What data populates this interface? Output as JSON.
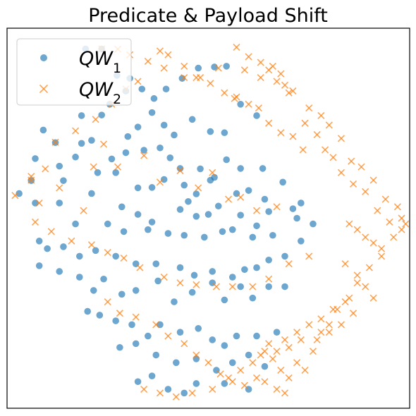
{
  "chart_data": {
    "type": "scatter",
    "title": "Predicate & Payload Shift",
    "xlabel": "",
    "ylabel": "",
    "xlim": [
      -1.0,
      1.0
    ],
    "ylim": [
      -1.0,
      1.0
    ],
    "grid": false,
    "legend": {
      "placement": "top-left",
      "entries": [
        "QW_1",
        "QW_2"
      ]
    },
    "series": [
      {
        "name": "QW_1",
        "label_main": "QW",
        "label_sub": "1",
        "marker": "circle",
        "color": "#1f77b4",
        "points": [
          [
            -0.61,
            0.891
          ],
          [
            -0.53,
            0.891
          ],
          [
            -0.454,
            0.752
          ],
          [
            -0.41,
            0.669
          ],
          [
            -0.39,
            0.736
          ],
          [
            -0.33,
            0.68
          ],
          [
            -0.27,
            0.63
          ],
          [
            -0.21,
            0.68
          ],
          [
            -0.13,
            0.736
          ],
          [
            -0.05,
            0.79
          ],
          [
            0.03,
            0.796
          ],
          [
            0.09,
            0.8
          ],
          [
            -0.63,
            0.54
          ],
          [
            -0.53,
            0.543
          ],
          [
            -0.49,
            0.6
          ],
          [
            -0.4,
            0.43
          ],
          [
            -0.35,
            0.48
          ],
          [
            -0.28,
            0.556
          ],
          [
            -0.22,
            0.49
          ],
          [
            -0.17,
            0.438
          ],
          [
            -0.08,
            0.52
          ],
          [
            0.01,
            0.456
          ],
          [
            0.08,
            0.45
          ],
          [
            0.16,
            0.6
          ],
          [
            0.24,
            0.54
          ],
          [
            -0.82,
            0.464
          ],
          [
            -0.76,
            0.398
          ],
          [
            -0.63,
            0.394
          ],
          [
            -0.58,
            0.41
          ],
          [
            -0.48,
            0.312
          ],
          [
            -0.41,
            0.345
          ],
          [
            -0.32,
            0.358
          ],
          [
            -0.24,
            0.37
          ],
          [
            -0.19,
            0.318
          ],
          [
            -0.14,
            0.262
          ],
          [
            -0.04,
            0.26
          ],
          [
            0.03,
            0.215
          ],
          [
            0.09,
            0.308
          ],
          [
            0.16,
            0.262
          ],
          [
            0.27,
            0.262
          ],
          [
            -0.86,
            0.314
          ],
          [
            -0.74,
            0.274
          ],
          [
            -0.66,
            0.322
          ],
          [
            -0.55,
            0.24
          ],
          [
            -0.46,
            0.24
          ],
          [
            -0.35,
            0.16
          ],
          [
            -0.28,
            0.162
          ],
          [
            -0.22,
            0.204
          ],
          [
            -0.12,
            0.174
          ],
          [
            -0.06,
            0.128
          ],
          [
            0.01,
            0.2
          ],
          [
            0.14,
            0.13
          ],
          [
            0.2,
            0.146
          ],
          [
            0.28,
            0.1
          ],
          [
            0.37,
            0.19
          ],
          [
            -0.88,
            0.198
          ],
          [
            -0.72,
            0.198
          ],
          [
            -0.58,
            0.13
          ],
          [
            -0.43,
            0.06
          ],
          [
            -0.35,
            0.02
          ],
          [
            -0.28,
            -0.02
          ],
          [
            -0.14,
            0.046
          ],
          [
            -0.1,
            0.088
          ],
          [
            -0.06,
            0.01
          ],
          [
            0.0,
            0.02
          ],
          [
            0.05,
            0.064
          ],
          [
            0.16,
            0.016
          ],
          [
            0.24,
            -0.04
          ],
          [
            0.3,
            0.035
          ],
          [
            0.42,
            0.05
          ],
          [
            0.46,
            0.08
          ],
          [
            -0.94,
            0.13
          ],
          [
            -0.86,
            0.08
          ],
          [
            -0.74,
            0.08
          ],
          [
            -0.66,
            -0.03
          ],
          [
            -0.5,
            -0.03
          ],
          [
            -0.42,
            -0.07
          ],
          [
            -0.3,
            -0.06
          ],
          [
            -0.2,
            -0.08
          ],
          [
            -0.12,
            -0.09
          ],
          [
            -0.02,
            -0.1
          ],
          [
            0.07,
            -0.07
          ],
          [
            0.12,
            -0.06
          ],
          [
            0.22,
            -0.1
          ],
          [
            0.32,
            -0.09
          ],
          [
            0.44,
            0.0
          ],
          [
            0.52,
            -0.03
          ],
          [
            -0.84,
            -0.12
          ],
          [
            -0.8,
            -0.16
          ],
          [
            -0.72,
            -0.15
          ],
          [
            -0.64,
            -0.2
          ],
          [
            -0.56,
            -0.17
          ],
          [
            -0.46,
            -0.2
          ],
          [
            -0.36,
            -0.24
          ],
          [
            -0.26,
            -0.24
          ],
          [
            -0.14,
            -0.26
          ],
          [
            -0.07,
            -0.3
          ],
          [
            0.02,
            -0.28
          ],
          [
            0.12,
            -0.31
          ],
          [
            0.18,
            -0.27
          ],
          [
            0.24,
            -0.26
          ],
          [
            0.3,
            -0.22
          ],
          [
            0.38,
            -0.2
          ],
          [
            0.46,
            -0.12
          ],
          [
            -0.84,
            -0.25
          ],
          [
            -0.74,
            -0.28
          ],
          [
            -0.64,
            -0.31
          ],
          [
            -0.57,
            -0.38
          ],
          [
            -0.52,
            -0.32
          ],
          [
            -0.43,
            -0.4
          ],
          [
            -0.36,
            -0.38
          ],
          [
            -0.25,
            -0.33
          ],
          [
            -0.17,
            -0.44
          ],
          [
            -0.08,
            -0.39
          ],
          [
            0.02,
            -0.34
          ],
          [
            0.08,
            -0.43
          ],
          [
            0.16,
            -0.36
          ],
          [
            0.22,
            -0.42
          ],
          [
            0.3,
            -0.36
          ],
          [
            0.38,
            -0.36
          ],
          [
            -0.6,
            -0.49
          ],
          [
            -0.54,
            -0.51
          ],
          [
            -0.46,
            -0.54
          ],
          [
            -0.38,
            -0.56
          ],
          [
            -0.3,
            -0.62
          ],
          [
            -0.24,
            -0.56
          ],
          [
            -0.14,
            -0.6
          ],
          [
            -0.05,
            -0.58
          ],
          [
            0.02,
            -0.64
          ],
          [
            0.08,
            -0.67
          ],
          [
            0.14,
            -0.62
          ],
          [
            0.24,
            -0.62
          ],
          [
            0.34,
            -0.6
          ],
          [
            -0.44,
            -0.68
          ],
          [
            -0.36,
            -0.66
          ],
          [
            -0.26,
            -0.72
          ],
          [
            -0.16,
            -0.76
          ],
          [
            -0.06,
            -0.74
          ],
          [
            0.04,
            -0.8
          ],
          [
            0.12,
            -0.76
          ],
          [
            0.2,
            -0.72
          ],
          [
            0.28,
            -0.78
          ],
          [
            -0.35,
            -0.86
          ],
          [
            -0.28,
            -0.83
          ],
          [
            -0.2,
            -0.9
          ],
          [
            -0.12,
            -0.92
          ],
          [
            -0.06,
            -0.87
          ],
          [
            0.08,
            -0.87
          ],
          [
            0.2,
            -0.9
          ]
        ]
      },
      {
        "name": "QW_2",
        "label_main": "QW",
        "label_sub": "2",
        "marker": "x",
        "color": "#ff7f0e",
        "points": [
          [
            -0.53,
            0.891
          ],
          [
            -0.45,
            0.89
          ],
          [
            -0.39,
            0.86
          ],
          [
            -0.3,
            0.826
          ],
          [
            -0.22,
            0.79
          ],
          [
            -0.12,
            0.8
          ],
          [
            -0.06,
            0.74
          ],
          [
            0.01,
            0.71
          ],
          [
            0.08,
            0.66
          ],
          [
            0.14,
            0.638
          ],
          [
            0.2,
            0.6
          ],
          [
            0.25,
            0.58
          ],
          [
            0.3,
            0.5
          ],
          [
            0.36,
            0.45
          ],
          [
            0.42,
            0.43
          ],
          [
            0.47,
            0.36
          ],
          [
            0.14,
            0.9
          ],
          [
            0.2,
            0.85
          ],
          [
            0.26,
            0.82
          ],
          [
            0.3,
            0.78
          ],
          [
            0.34,
            0.72
          ],
          [
            0.38,
            0.7
          ],
          [
            0.42,
            0.67
          ],
          [
            0.5,
            0.58
          ],
          [
            0.56,
            0.54
          ],
          [
            0.6,
            0.49
          ],
          [
            0.66,
            0.42
          ],
          [
            0.71,
            0.3
          ],
          [
            0.76,
            0.27
          ],
          [
            0.82,
            0.2
          ],
          [
            0.88,
            0.1
          ],
          [
            0.94,
            0.06
          ],
          [
            0.18,
            0.78
          ],
          [
            0.26,
            0.74
          ],
          [
            0.32,
            0.8
          ],
          [
            0.36,
            0.76
          ],
          [
            0.4,
            0.66
          ],
          [
            0.48,
            0.5
          ],
          [
            0.54,
            0.44
          ],
          [
            0.58,
            0.36
          ],
          [
            0.62,
            0.32
          ],
          [
            0.66,
            0.24
          ],
          [
            0.72,
            0.18
          ],
          [
            0.78,
            0.14
          ],
          [
            0.84,
            0.04
          ],
          [
            0.9,
            -0.02
          ],
          [
            0.96,
            -0.06
          ],
          [
            0.98,
            -0.03
          ],
          [
            -0.96,
            0.12
          ],
          [
            -0.88,
            0.2
          ],
          [
            -0.81,
            0.26
          ],
          [
            -0.76,
            0.4
          ],
          [
            -0.66,
            0.46
          ],
          [
            -0.56,
            0.52
          ],
          [
            -0.48,
            0.6
          ],
          [
            -0.41,
            0.68
          ],
          [
            -0.35,
            0.72
          ],
          [
            -0.24,
            0.88
          ],
          [
            -0.2,
            0.86
          ],
          [
            -0.12,
            0.74
          ],
          [
            -0.04,
            0.74
          ],
          [
            0.05,
            0.79
          ],
          [
            0.13,
            0.63
          ],
          [
            -0.88,
            0.22
          ],
          [
            -0.84,
            0.08
          ],
          [
            -0.74,
            0.16
          ],
          [
            -0.62,
            0.04
          ],
          [
            -0.57,
            0.27
          ],
          [
            -0.52,
            0.39
          ],
          [
            -0.45,
            0.27
          ],
          [
            -0.32,
            0.33
          ],
          [
            -0.24,
            0.19
          ],
          [
            -0.14,
            0.25
          ],
          [
            -0.05,
            0.16
          ],
          [
            0.02,
            0.24
          ],
          [
            0.1,
            0.1
          ],
          [
            0.16,
            0.11
          ],
          [
            0.24,
            0.04
          ],
          [
            0.34,
            0.06
          ],
          [
            -0.86,
            -0.02
          ],
          [
            -0.78,
            -0.07
          ],
          [
            -0.68,
            -0.12
          ],
          [
            -0.58,
            -0.14
          ],
          [
            -0.5,
            -0.18
          ],
          [
            -0.42,
            -0.21
          ],
          [
            -0.34,
            -0.26
          ],
          [
            -0.22,
            -0.31
          ],
          [
            -0.14,
            -0.34
          ],
          [
            -0.06,
            -0.35
          ],
          [
            0.04,
            -0.36
          ],
          [
            0.12,
            -0.36
          ],
          [
            0.22,
            -0.36
          ],
          [
            0.3,
            -0.32
          ],
          [
            0.4,
            -0.24
          ],
          [
            0.5,
            -0.2
          ],
          [
            0.7,
            -0.03
          ],
          [
            0.74,
            -0.06
          ],
          [
            0.78,
            -0.1
          ],
          [
            0.82,
            -0.13
          ],
          [
            0.86,
            -0.16
          ],
          [
            0.68,
            -0.24
          ],
          [
            0.74,
            -0.3
          ],
          [
            0.78,
            -0.36
          ],
          [
            0.82,
            -0.42
          ],
          [
            0.68,
            -0.44
          ],
          [
            0.62,
            -0.48
          ],
          [
            0.56,
            -0.53
          ],
          [
            0.5,
            -0.56
          ],
          [
            0.44,
            -0.6
          ],
          [
            0.38,
            -0.64
          ],
          [
            0.3,
            -0.66
          ],
          [
            0.26,
            -0.72
          ],
          [
            0.32,
            -0.74
          ],
          [
            0.36,
            -0.8
          ],
          [
            0.4,
            -0.84
          ],
          [
            0.44,
            -0.76
          ],
          [
            0.48,
            -0.8
          ],
          [
            0.52,
            -0.7
          ],
          [
            0.56,
            -0.6
          ],
          [
            0.6,
            -0.56
          ],
          [
            0.64,
            -0.48
          ],
          [
            0.7,
            -0.42
          ],
          [
            0.74,
            -0.34
          ],
          [
            0.8,
            -0.26
          ],
          [
            0.86,
            -0.2
          ],
          [
            0.92,
            -0.1
          ],
          [
            0.96,
            0.0
          ],
          [
            -0.5,
            -0.44
          ],
          [
            -0.44,
            -0.5
          ],
          [
            -0.36,
            -0.52
          ],
          [
            -0.26,
            -0.56
          ],
          [
            -0.2,
            -0.62
          ],
          [
            -0.12,
            -0.66
          ],
          [
            -0.06,
            -0.72
          ],
          [
            0.0,
            -0.76
          ],
          [
            0.06,
            -0.82
          ],
          [
            0.12,
            -0.86
          ],
          [
            0.18,
            -0.88
          ],
          [
            0.24,
            -0.84
          ],
          [
            0.28,
            -0.86
          ],
          [
            0.34,
            -0.9
          ],
          [
            0.38,
            -0.92
          ],
          [
            -0.32,
            -0.9
          ],
          [
            -0.24,
            -0.92
          ],
          [
            -0.16,
            -0.94
          ],
          [
            -0.08,
            -0.92
          ],
          [
            0.02,
            -0.9
          ],
          [
            0.1,
            -0.84
          ],
          [
            0.16,
            -0.8
          ],
          [
            0.22,
            -0.76
          ],
          [
            0.28,
            -0.7
          ],
          [
            0.34,
            -0.7
          ],
          [
            0.4,
            -0.68
          ],
          [
            0.46,
            -0.64
          ],
          [
            0.54,
            -0.64
          ],
          [
            0.6,
            -0.6
          ],
          [
            0.66,
            -0.56
          ],
          [
            0.72,
            -0.5
          ]
        ]
      }
    ]
  }
}
